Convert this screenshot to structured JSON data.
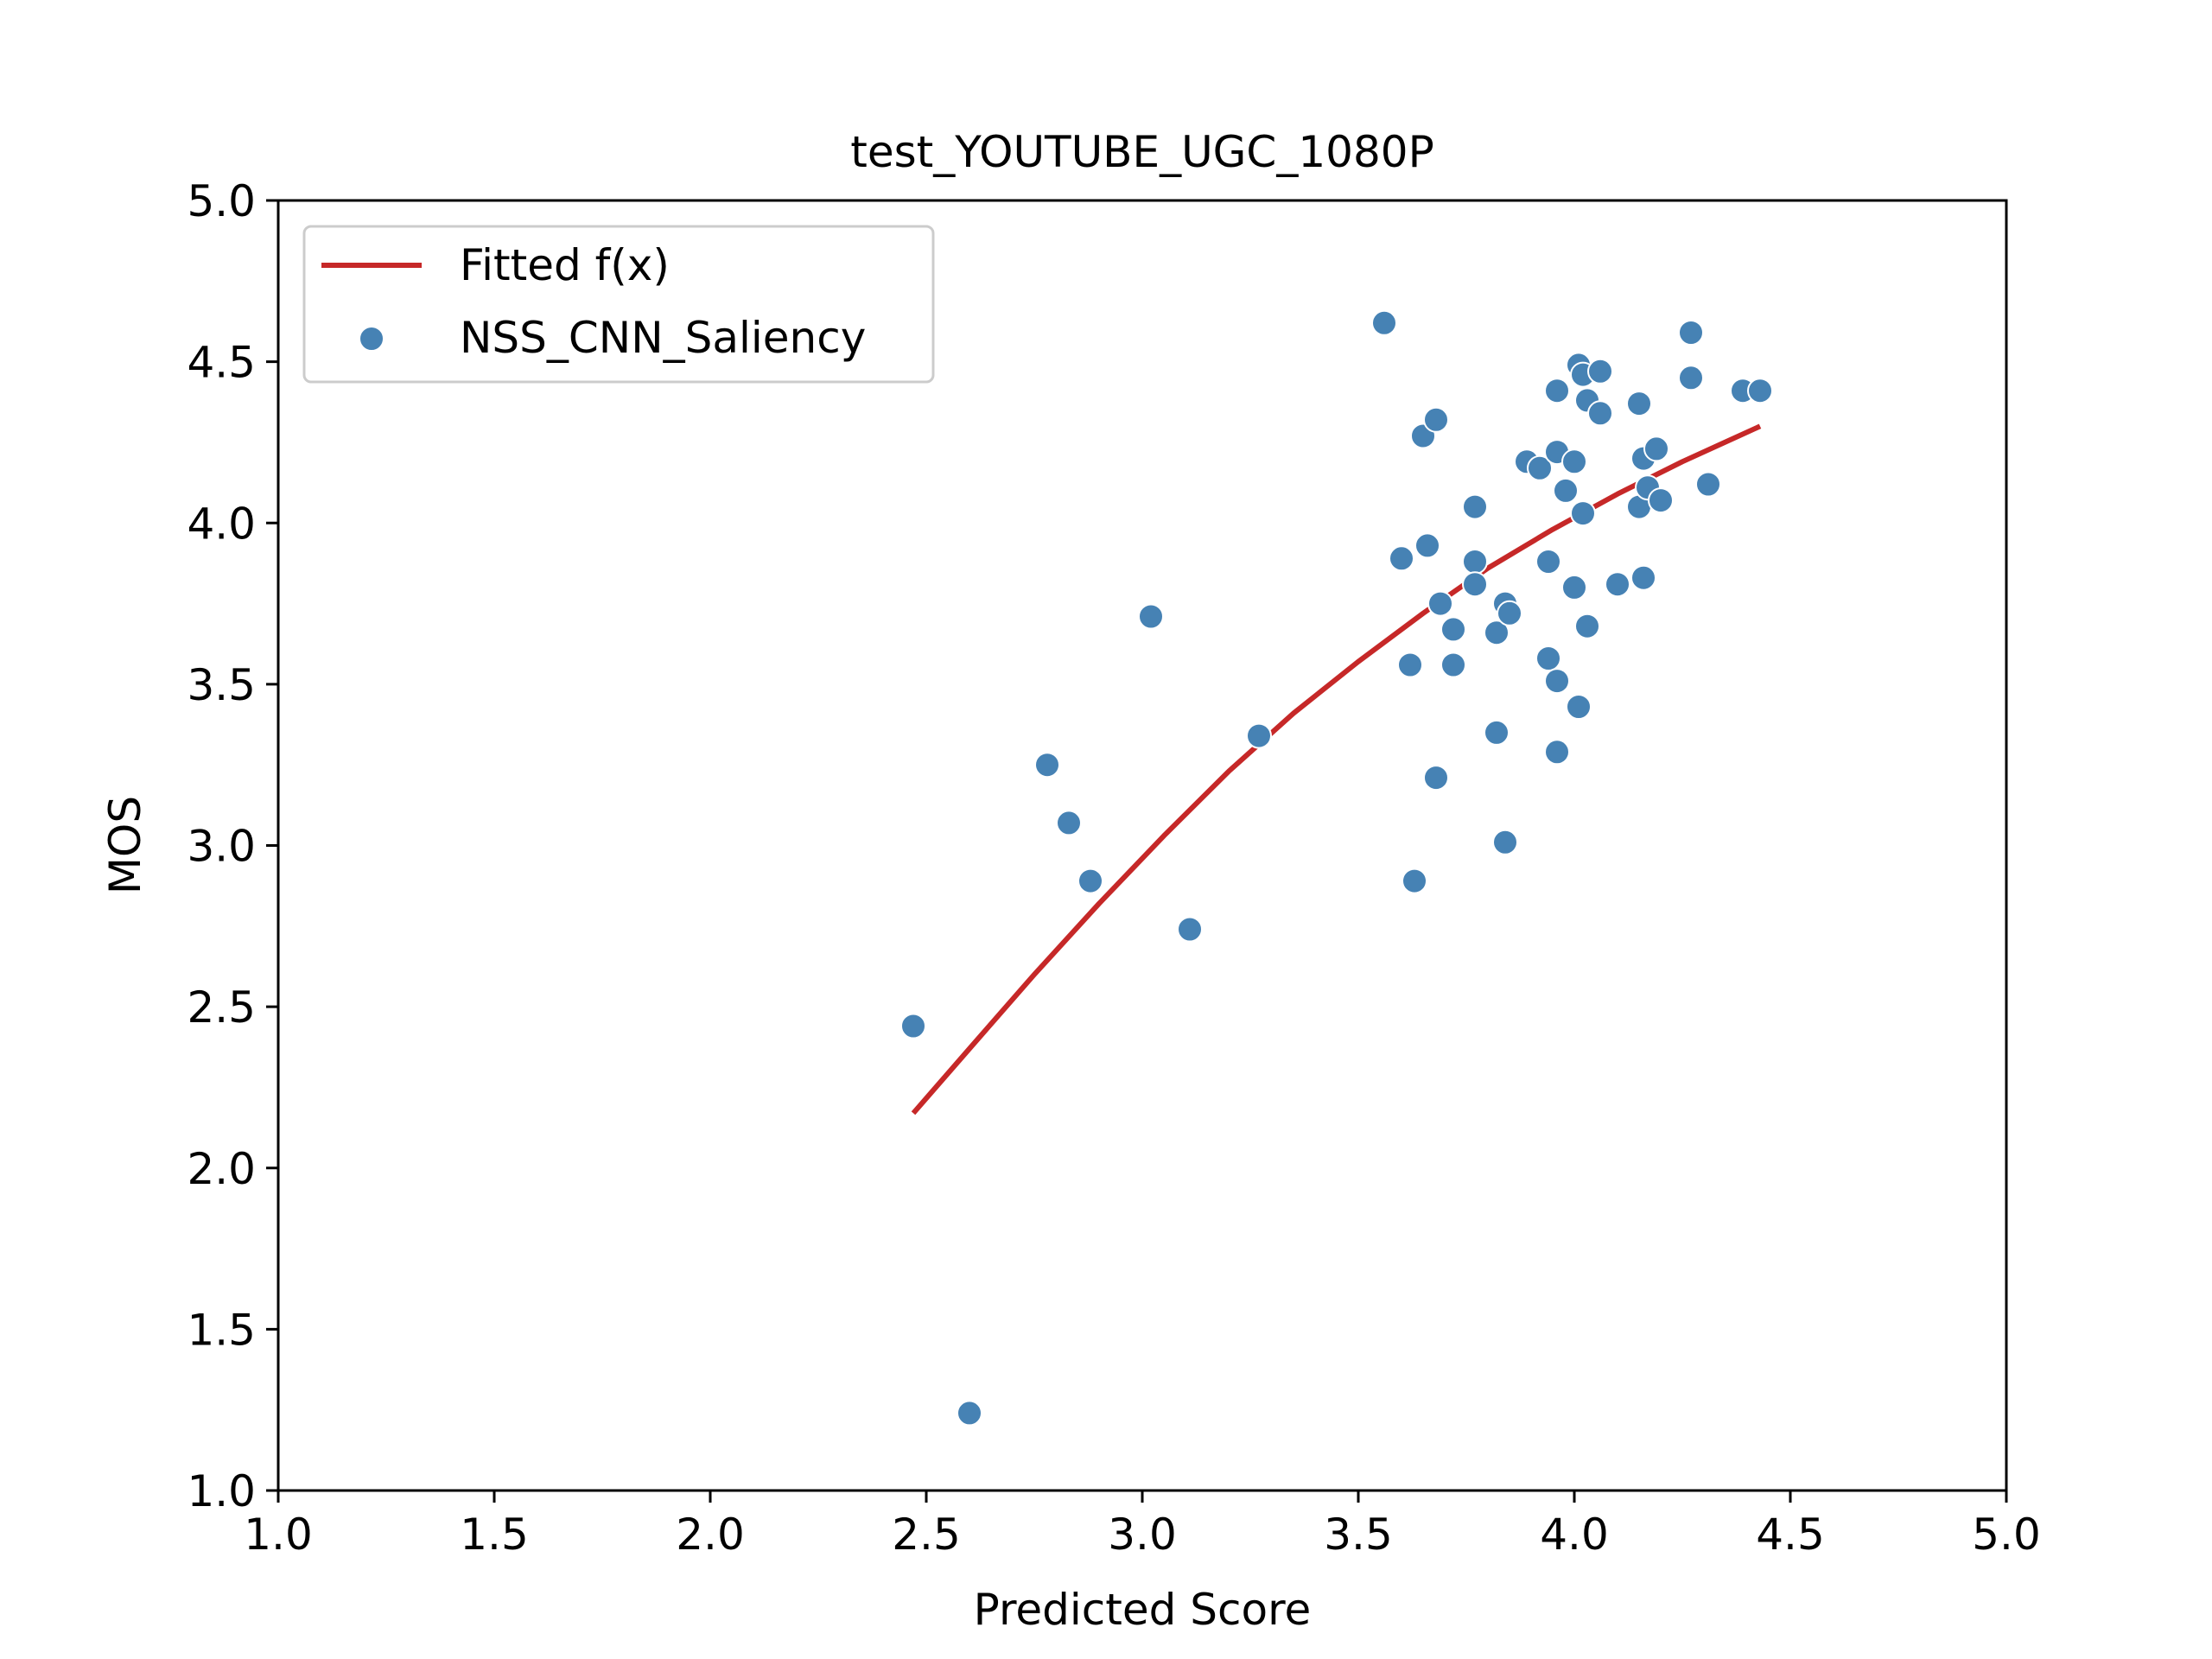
{
  "chart_data": {
    "type": "scatter",
    "title": "test_YOUTUBE_UGC_1080P",
    "xlabel": "Predicted Score",
    "ylabel": "MOS",
    "xlim": [
      1.0,
      5.0
    ],
    "ylim": [
      1.0,
      5.0
    ],
    "xticks": [
      "1.0",
      "1.5",
      "2.0",
      "2.5",
      "3.0",
      "3.5",
      "4.0",
      "4.5",
      "5.0"
    ],
    "yticks": [
      "1.0",
      "1.5",
      "2.0",
      "2.5",
      "3.0",
      "3.5",
      "4.0",
      "4.5",
      "5.0"
    ],
    "grid": false,
    "legend_position": "upper-left",
    "colors": {
      "fit": "#c62828",
      "points": "#4682b4",
      "axes": "#000000"
    },
    "legend": [
      {
        "label": "Fitted f(x)",
        "kind": "line",
        "color": "#c62828"
      },
      {
        "label": "NSS_CNN_Saliency",
        "kind": "marker",
        "color": "#4682b4"
      }
    ],
    "series": [
      {
        "name": "Fitted f(x)",
        "kind": "line",
        "points": [
          [
            2.47,
            2.17
          ],
          [
            2.6,
            2.37
          ],
          [
            2.75,
            2.6
          ],
          [
            2.9,
            2.82
          ],
          [
            3.05,
            3.03
          ],
          [
            3.2,
            3.23
          ],
          [
            3.35,
            3.41
          ],
          [
            3.5,
            3.57
          ],
          [
            3.65,
            3.72
          ],
          [
            3.8,
            3.86
          ],
          [
            3.95,
            3.98
          ],
          [
            4.1,
            4.09
          ],
          [
            4.25,
            4.19
          ],
          [
            4.43,
            4.3
          ]
        ]
      },
      {
        "name": "NSS_CNN_Saliency",
        "kind": "scatter",
        "points": [
          [
            2.47,
            2.44
          ],
          [
            2.6,
            1.24
          ],
          [
            2.78,
            3.25
          ],
          [
            2.83,
            3.07
          ],
          [
            2.88,
            2.89
          ],
          [
            3.02,
            3.71
          ],
          [
            3.11,
            2.74
          ],
          [
            3.27,
            3.34
          ],
          [
            3.56,
            4.62
          ],
          [
            3.6,
            3.89
          ],
          [
            3.62,
            3.56
          ],
          [
            3.63,
            2.89
          ],
          [
            3.65,
            4.27
          ],
          [
            3.66,
            3.93
          ],
          [
            3.68,
            4.32
          ],
          [
            3.68,
            3.21
          ],
          [
            3.69,
            3.75
          ],
          [
            3.72,
            3.67
          ],
          [
            3.72,
            3.56
          ],
          [
            3.77,
            4.05
          ],
          [
            3.77,
            3.88
          ],
          [
            3.77,
            3.81
          ],
          [
            3.82,
            3.66
          ],
          [
            3.82,
            3.35
          ],
          [
            3.84,
            3.75
          ],
          [
            3.84,
            3.01
          ],
          [
            3.85,
            3.72
          ],
          [
            3.89,
            4.19
          ],
          [
            3.92,
            4.17
          ],
          [
            3.94,
            3.88
          ],
          [
            3.94,
            3.58
          ],
          [
            3.96,
            4.41
          ],
          [
            3.96,
            4.22
          ],
          [
            3.96,
            3.51
          ],
          [
            3.96,
            3.29
          ],
          [
            3.98,
            4.1
          ],
          [
            4.0,
            4.19
          ],
          [
            4.0,
            3.8
          ],
          [
            4.01,
            4.49
          ],
          [
            4.01,
            3.43
          ],
          [
            4.02,
            4.46
          ],
          [
            4.02,
            4.03
          ],
          [
            4.03,
            4.38
          ],
          [
            4.03,
            3.68
          ],
          [
            4.06,
            4.47
          ],
          [
            4.06,
            4.34
          ],
          [
            4.1,
            3.81
          ],
          [
            4.15,
            4.37
          ],
          [
            4.15,
            4.05
          ],
          [
            4.16,
            4.2
          ],
          [
            4.16,
            3.83
          ],
          [
            4.17,
            4.11
          ],
          [
            4.19,
            4.23
          ],
          [
            4.2,
            4.07
          ],
          [
            4.27,
            4.59
          ],
          [
            4.27,
            4.45
          ],
          [
            4.31,
            4.12
          ],
          [
            4.39,
            4.41
          ],
          [
            4.43,
            4.41
          ]
        ]
      }
    ]
  }
}
